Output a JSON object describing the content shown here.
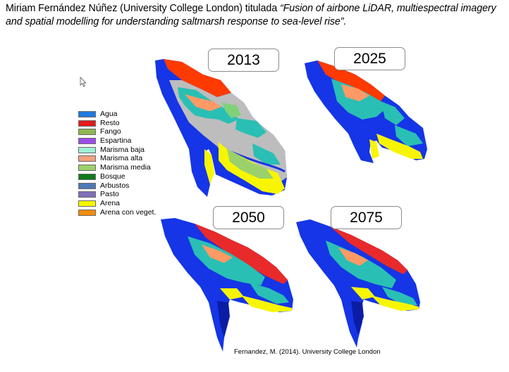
{
  "caption": {
    "normal": "Miriam Fernández Núñez (University College London) titulada ",
    "italic": "“Fusion of airbone LiDAR, multiespectral imagery and spatial modelling for understanding saltmarsh response to sea-level rise”."
  },
  "legend": [
    {
      "label": "Agua",
      "color": "#1f7ae0"
    },
    {
      "label": "Resto",
      "color": "#e41a1a"
    },
    {
      "label": "Fango",
      "color": "#8fb64e"
    },
    {
      "label": "Espartina",
      "color": "#9b4dea"
    },
    {
      "label": "Marisma baja",
      "color": "#9ff2d6"
    },
    {
      "label": "Marisma alta",
      "color": "#f4a07f"
    },
    {
      "label": "Marisma media",
      "color": "#9bd16a"
    },
    {
      "label": "Bosque",
      "color": "#0f7a19"
    },
    {
      "label": "Arbustos",
      "color": "#4f78b4"
    },
    {
      "label": "Pasto",
      "color": "#8070b8"
    },
    {
      "label": "Arena",
      "color": "#f6f600"
    },
    {
      "label": "Arena con veget.",
      "color": "#f28c0d"
    }
  ],
  "panels": [
    {
      "year": "2013"
    },
    {
      "year": "2025"
    },
    {
      "year": "2050"
    },
    {
      "year": "2075"
    }
  ],
  "source": "Fernandez, M. (2014). University College London",
  "icons": {
    "cursor": "arrow-cursor-icon"
  }
}
